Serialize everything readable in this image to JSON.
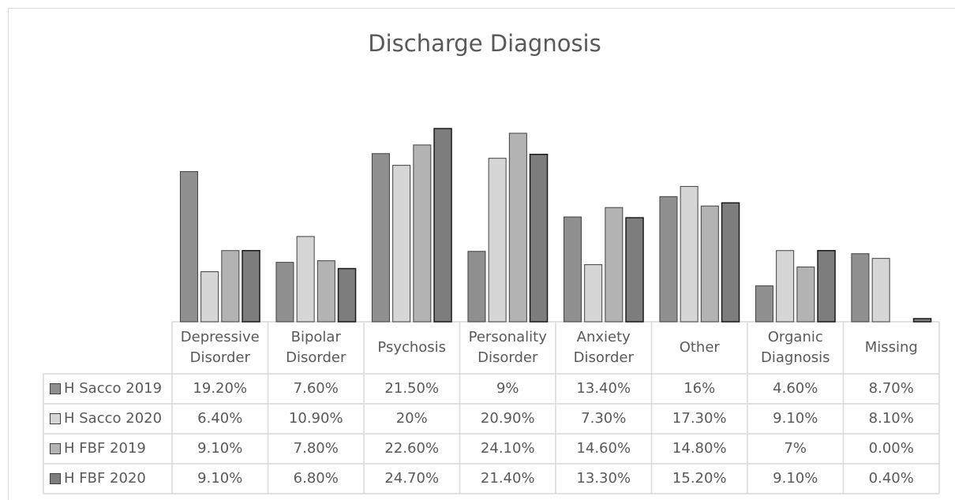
{
  "chart_data": {
    "type": "bar",
    "title": "Discharge Diagnosis",
    "categories": [
      "Depressive Disorder",
      "Bipolar Disorder",
      "Psychosis",
      "Personality Disorder",
      "Anxiety Disorder",
      "Other",
      "Organic Diagnosis",
      "Missing"
    ],
    "series": [
      {
        "name": "H Sacco 2019",
        "color": "#8f8f8f",
        "values": [
          19.2,
          7.6,
          21.5,
          9,
          13.4,
          16,
          4.6,
          8.7
        ],
        "value_labels": [
          "19.20%",
          "7.60%",
          "21.50%",
          "9%",
          "13.40%",
          "16%",
          "4.60%",
          "8.70%"
        ]
      },
      {
        "name": "H Sacco 2020",
        "color": "#d6d6d6",
        "values": [
          6.4,
          10.9,
          20,
          20.9,
          7.3,
          17.3,
          9.1,
          8.1
        ],
        "value_labels": [
          "6.40%",
          "10.90%",
          "20%",
          "20.90%",
          "7.30%",
          "17.30%",
          "9.10%",
          "8.10%"
        ]
      },
      {
        "name": "H FBF 2019",
        "color": "#b3b3b3",
        "values": [
          9.1,
          7.8,
          22.6,
          24.1,
          14.6,
          14.8,
          7,
          0
        ],
        "value_labels": [
          "9.10%",
          "7.80%",
          "22.60%",
          "24.10%",
          "14.60%",
          "14.80%",
          "7%",
          "0.00%"
        ]
      },
      {
        "name": "H FBF 2020",
        "color": "#7d7d7d",
        "values": [
          9.1,
          6.8,
          24.7,
          21.4,
          13.3,
          15.2,
          9.1,
          0.4
        ],
        "value_labels": [
          "9.10%",
          "6.80%",
          "24.70%",
          "21.40%",
          "13.30%",
          "15.20%",
          "9.10%",
          "0.40%"
        ]
      }
    ]
  }
}
